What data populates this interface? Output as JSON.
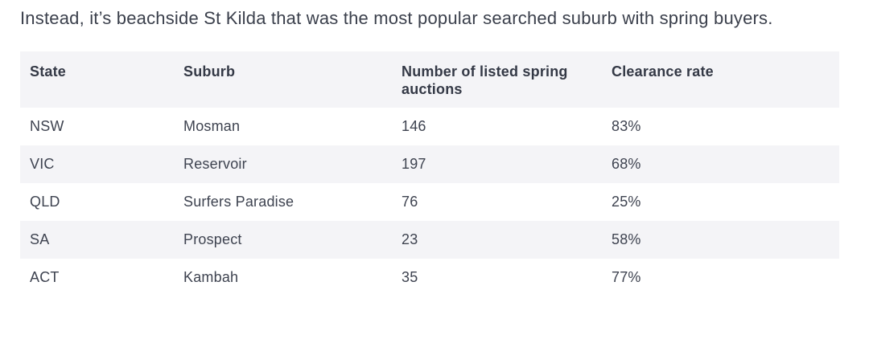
{
  "intro": {
    "text": "Instead, it’s beachside St Kilda that was the most popular searched suburb with spring buyers."
  },
  "table": {
    "headers": [
      "State",
      "Suburb",
      "Number of listed spring auctions",
      "Clearance rate"
    ],
    "rows": [
      {
        "state": "NSW",
        "suburb": "Mosman",
        "auctions": "146",
        "clearance": "83%"
      },
      {
        "state": "VIC",
        "suburb": "Reservoir",
        "auctions": "197",
        "clearance": "68%"
      },
      {
        "state": "QLD",
        "suburb": "Surfers Paradise",
        "auctions": "76",
        "clearance": "25%"
      },
      {
        "state": "SA",
        "suburb": "Prospect",
        "auctions": "23",
        "clearance": "58%"
      },
      {
        "state": "ACT",
        "suburb": "Kambah",
        "auctions": "35",
        "clearance": "77%"
      }
    ]
  },
  "colors": {
    "background": "#ffffff",
    "stripe": "#f4f4f7",
    "body_text": "#3e4350",
    "header_text": "#343946",
    "intro_text": "#3b404c"
  }
}
